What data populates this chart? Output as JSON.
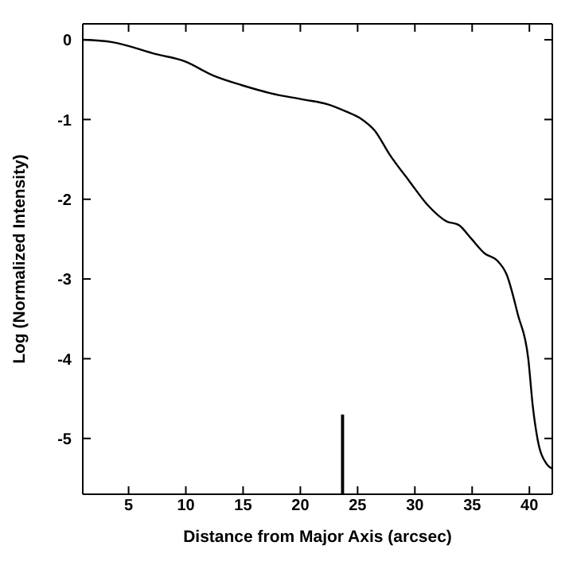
{
  "chart_data": {
    "type": "line",
    "xlabel": "Distance from Major Axis (arcsec)",
    "ylabel": "Log (Normalized Intensity)",
    "xlim": [
      1,
      42
    ],
    "ylim": [
      -5.7,
      0.2
    ],
    "xticks": [
      5,
      10,
      15,
      20,
      25,
      30,
      35,
      40
    ],
    "yticks": [
      -5,
      -4,
      -3,
      -2,
      -1,
      0
    ],
    "marker": "none",
    "line_style": "solid",
    "series": [
      {
        "color": "#000000",
        "x": [
          1,
          3.6,
          7.4,
          9.9,
          12.4,
          14.9,
          17.4,
          20.3,
          22.4,
          24,
          25.3,
          26.5,
          27.8,
          29.5,
          31.1,
          32.8,
          33.8,
          34.9,
          36.1,
          37.2,
          38,
          39,
          39.9,
          40.3,
          40.7,
          41.5,
          42
        ],
        "values": [
          0,
          -0.03,
          -0.18,
          -0.27,
          -0.45,
          -0.57,
          -0.67,
          -0.75,
          -0.81,
          -0.9,
          -0.99,
          -1.14,
          -1.44,
          -1.77,
          -2.07,
          -2.28,
          -2.32,
          -2.49,
          -2.68,
          -2.77,
          -2.94,
          -3.45,
          -4.0,
          -4.6,
          -5.0,
          -5.32,
          -5.38
        ]
      },
      {
        "type": "bar",
        "color": "#000000",
        "x": [
          23.7
        ],
        "values": [
          1.0
        ],
        "base": [
          -5.7
        ]
      }
    ]
  }
}
